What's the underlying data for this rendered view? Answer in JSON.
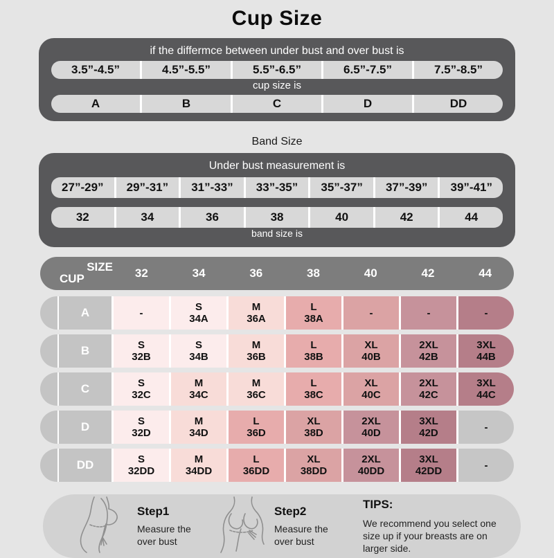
{
  "title": "Cup Size",
  "colors": {
    "background": "#e5e5e5",
    "panel_dark": "#58585a",
    "pill": "#d8d8d8",
    "matrix_header": "#7d7d7d",
    "label_gray": "#c4c4c4",
    "tips_panel": "#d2d2d2",
    "tones": {
      "s": "#fcecec",
      "m": "#f8dcd8",
      "l": "#e7acac",
      "xl": "#dba3a4",
      "2xl": "#c6929b",
      "3xl": "#b57e89",
      "gray": "#c6c6c6"
    }
  },
  "cup_panel": {
    "heading": "if the differmce between under bust and over bust is",
    "ranges": [
      "3.5”-4.5”",
      "4.5”-5.5”",
      "5.5”-6.5”",
      "6.5”-7.5”",
      "7.5”-8.5”"
    ],
    "subheading": "cup size is",
    "cups": [
      "A",
      "B",
      "C",
      "D",
      "DD"
    ]
  },
  "band_section": {
    "title": "Band Size",
    "heading": "Under bust measurement is",
    "ranges": [
      "27”-29”",
      "29”-31”",
      "31”-33”",
      "33”-35”",
      "35”-37”",
      "37”-39”",
      "39”-41”"
    ],
    "bands": [
      "32",
      "34",
      "36",
      "38",
      "40",
      "42",
      "44"
    ],
    "footer": "band size is"
  },
  "matrix": {
    "corner_top": "SIZE",
    "corner_bottom": "CUP",
    "columns": [
      "32",
      "34",
      "36",
      "38",
      "40",
      "42",
      "44"
    ],
    "rows": [
      {
        "cup": "A",
        "cells": [
          {
            "size": "-",
            "code": "",
            "tone": "s"
          },
          {
            "size": "S",
            "code": "34A",
            "tone": "s"
          },
          {
            "size": "M",
            "code": "36A",
            "tone": "m"
          },
          {
            "size": "L",
            "code": "38A",
            "tone": "l"
          },
          {
            "size": "-",
            "code": "",
            "tone": "xl"
          },
          {
            "size": "-",
            "code": "",
            "tone": "2xl"
          },
          {
            "size": "-",
            "code": "",
            "tone": "3xl"
          }
        ]
      },
      {
        "cup": "B",
        "cells": [
          {
            "size": "S",
            "code": "32B",
            "tone": "s"
          },
          {
            "size": "S",
            "code": "34B",
            "tone": "s"
          },
          {
            "size": "M",
            "code": "36B",
            "tone": "m"
          },
          {
            "size": "L",
            "code": "38B",
            "tone": "l"
          },
          {
            "size": "XL",
            "code": "40B",
            "tone": "xl"
          },
          {
            "size": "2XL",
            "code": "42B",
            "tone": "2xl"
          },
          {
            "size": "3XL",
            "code": "44B",
            "tone": "3xl"
          }
        ]
      },
      {
        "cup": "C",
        "cells": [
          {
            "size": "S",
            "code": "32C",
            "tone": "s"
          },
          {
            "size": "M",
            "code": "34C",
            "tone": "m"
          },
          {
            "size": "M",
            "code": "36C",
            "tone": "m"
          },
          {
            "size": "L",
            "code": "38C",
            "tone": "l"
          },
          {
            "size": "XL",
            "code": "40C",
            "tone": "xl"
          },
          {
            "size": "2XL",
            "code": "42C",
            "tone": "2xl"
          },
          {
            "size": "3XL",
            "code": "44C",
            "tone": "3xl"
          }
        ]
      },
      {
        "cup": "D",
        "cells": [
          {
            "size": "S",
            "code": "32D",
            "tone": "s"
          },
          {
            "size": "M",
            "code": "34D",
            "tone": "m"
          },
          {
            "size": "L",
            "code": "36D",
            "tone": "l"
          },
          {
            "size": "XL",
            "code": "38D",
            "tone": "xl"
          },
          {
            "size": "2XL",
            "code": "40D",
            "tone": "2xl"
          },
          {
            "size": "3XL",
            "code": "42D",
            "tone": "3xl"
          },
          {
            "size": "-",
            "code": "",
            "tone": "gray"
          }
        ]
      },
      {
        "cup": "DD",
        "cells": [
          {
            "size": "S",
            "code": "32DD",
            "tone": "s"
          },
          {
            "size": "M",
            "code": "34DD",
            "tone": "m"
          },
          {
            "size": "L",
            "code": "36DD",
            "tone": "l"
          },
          {
            "size": "XL",
            "code": "38DD",
            "tone": "xl"
          },
          {
            "size": "2XL",
            "code": "40DD",
            "tone": "2xl"
          },
          {
            "size": "3XL",
            "code": "42DD",
            "tone": "3xl"
          },
          {
            "size": "-",
            "code": "",
            "tone": "gray"
          }
        ]
      }
    ]
  },
  "steps": [
    {
      "label": "Step1",
      "text": "Measure the over bust"
    },
    {
      "label": "Step2",
      "text": "Measure the over bust"
    }
  ],
  "tips": {
    "title": "TIPS:",
    "text": "We recommend you select one size up if your breasts are on larger side."
  }
}
